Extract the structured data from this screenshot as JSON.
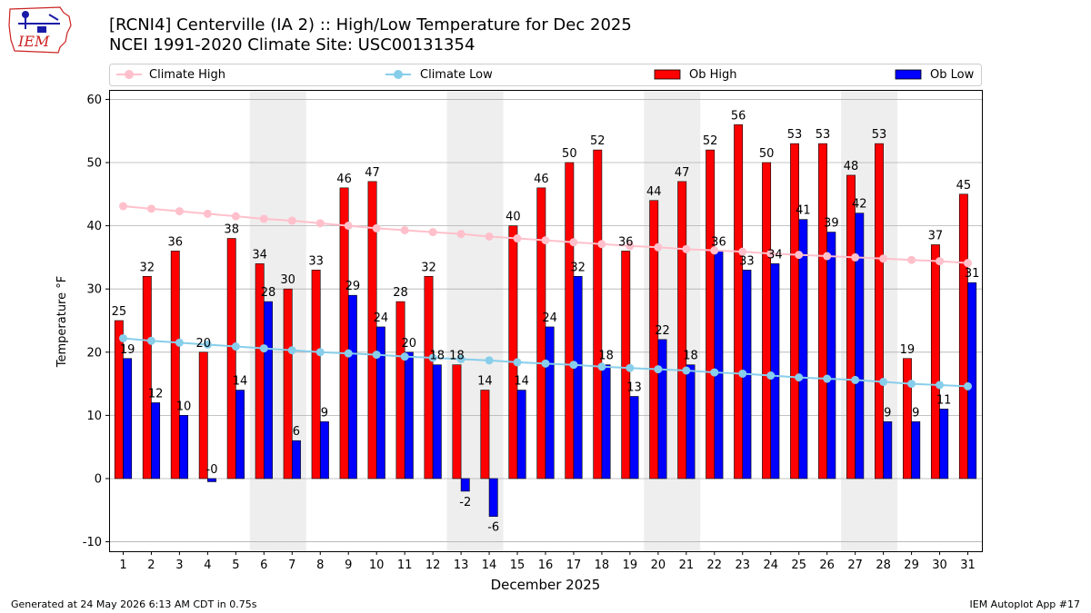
{
  "header": {
    "title_line1": "[RCNI4] Centerville (IA 2) :: High/Low Temperature for Dec 2025",
    "title_line2": "NCEI 1991-2020 Climate Site: USC00131354"
  },
  "logo": {
    "text": "IEM",
    "color": "#cc2222"
  },
  "footer": {
    "generated": "Generated at 24 May 2026 6:13 AM CDT in 0.75s",
    "app": "IEM Autoplot App #17"
  },
  "colors": {
    "ob_high": "#ff0000",
    "ob_low": "#0000ff",
    "climate_high": "#ffc0cb",
    "climate_low": "#87ceeb",
    "weekend_shade": "#eeeeee",
    "grid": "#b0b0b0"
  },
  "chart_data": {
    "type": "bar",
    "xlabel": "December 2025",
    "ylabel": "Temperature °F",
    "ylim": [
      -11.5,
      61.5
    ],
    "yticks": [
      -10,
      0,
      10,
      20,
      30,
      40,
      50,
      60
    ],
    "grid": "horizontal",
    "legend_placement": "top, above plot",
    "categories": [
      "1",
      "2",
      "3",
      "4",
      "5",
      "6",
      "7",
      "8",
      "9",
      "10",
      "11",
      "12",
      "13",
      "14",
      "15",
      "16",
      "17",
      "18",
      "19",
      "20",
      "21",
      "22",
      "23",
      "24",
      "25",
      "26",
      "27",
      "28",
      "29",
      "30",
      "31"
    ],
    "weekend_days": [
      6,
      7,
      13,
      14,
      20,
      21,
      27,
      28
    ],
    "series": [
      {
        "name": "Climate High",
        "kind": "line",
        "values": [
          43.1,
          42.7,
          42.3,
          41.9,
          41.5,
          41.1,
          40.8,
          40.4,
          40.0,
          39.6,
          39.3,
          39.0,
          38.7,
          38.3,
          38.0,
          37.7,
          37.4,
          37.1,
          36.8,
          36.6,
          36.3,
          36.1,
          35.9,
          35.6,
          35.4,
          35.2,
          35.0,
          34.8,
          34.6,
          34.4,
          34.1
        ]
      },
      {
        "name": "Climate Low",
        "kind": "line",
        "values": [
          22.2,
          21.8,
          21.5,
          21.2,
          20.9,
          20.6,
          20.3,
          20.0,
          19.8,
          19.6,
          19.3,
          19.1,
          18.9,
          18.7,
          18.4,
          18.2,
          18.0,
          17.7,
          17.5,
          17.3,
          17.1,
          16.8,
          16.6,
          16.3,
          16.0,
          15.8,
          15.6,
          15.3,
          15.0,
          14.8,
          14.6
        ]
      },
      {
        "name": "Ob High",
        "kind": "bar",
        "values": [
          25,
          32,
          36,
          20,
          38,
          34,
          30,
          33,
          46,
          47,
          28,
          32,
          18,
          14,
          40,
          46,
          50,
          52,
          36,
          44,
          47,
          52,
          56,
          50,
          53,
          53,
          48,
          53,
          19,
          37,
          45
        ]
      },
      {
        "name": "Ob Low",
        "kind": "bar",
        "values": [
          19,
          12,
          10,
          -0.5,
          14,
          28,
          6,
          9,
          29,
          24,
          20,
          18,
          -2,
          -6,
          14,
          24,
          32,
          18,
          13,
          22,
          18,
          36,
          33,
          34,
          41,
          39,
          42,
          9,
          9,
          11,
          31
        ]
      }
    ],
    "high_labels": [
      "25",
      "32",
      "36",
      "20",
      "38",
      "34",
      "30",
      "33",
      "46",
      "47",
      "28",
      "32",
      "18",
      "14",
      "40",
      "46",
      "50",
      "52",
      "36",
      "44",
      "47",
      "52",
      "56",
      "50",
      "53",
      "53",
      "48",
      "53",
      "19",
      "37",
      "45"
    ],
    "low_labels": [
      "19",
      "12",
      "10",
      "-0",
      "14",
      "28",
      "6",
      "9",
      "29",
      "24",
      "20",
      "18",
      "-2",
      "-6",
      "14",
      "24",
      "32",
      "18",
      "13",
      "22",
      "18",
      "36",
      "33",
      "34",
      "41",
      "39",
      "42",
      "9",
      "9",
      "11",
      "31"
    ]
  }
}
